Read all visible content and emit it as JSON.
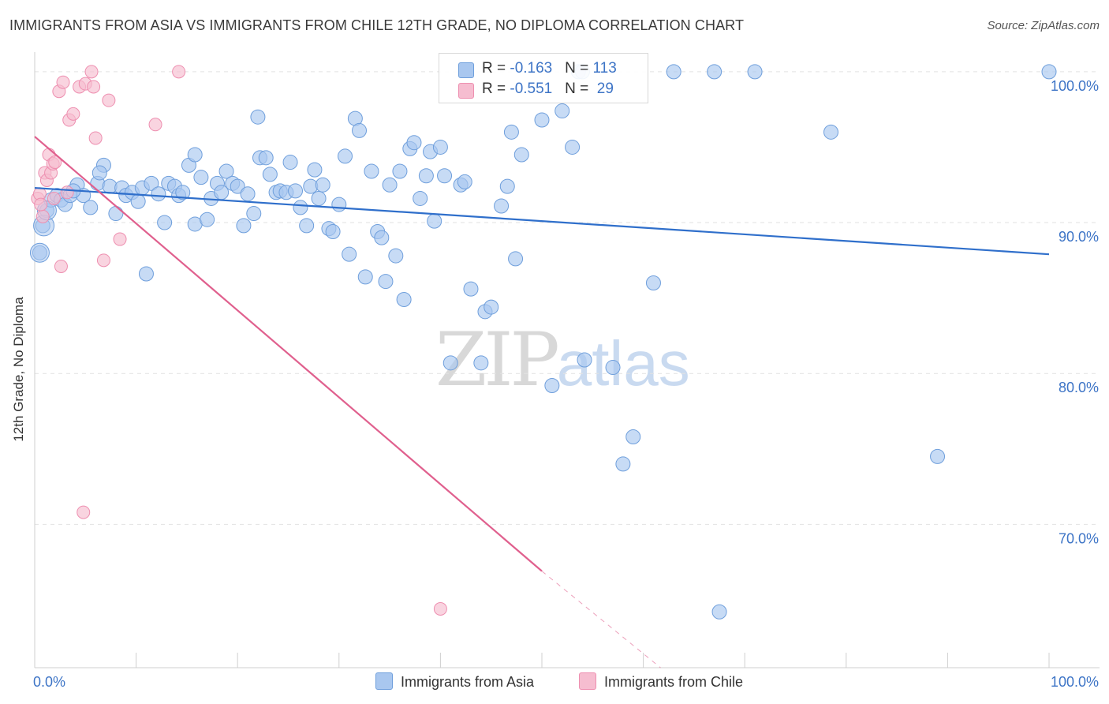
{
  "title": "IMMIGRANTS FROM ASIA VS IMMIGRANTS FROM CHILE 12TH GRADE, NO DIPLOMA CORRELATION CHART",
  "source": "Source: ZipAtlas.com",
  "watermark": {
    "zip": "ZIP",
    "atlas": "atlas"
  },
  "legend": {
    "asia": {
      "r_label": "R = ",
      "r_value": "-0.163",
      "n_label": "N = ",
      "n_value": "113"
    },
    "chile": {
      "r_label": "R = ",
      "r_value": "-0.551",
      "n_label": "N = ",
      "n_value": "29"
    }
  },
  "colors": {
    "asia_fill": "#a9c7ef",
    "asia_stroke": "#6f9fdc",
    "asia_line": "#2f6fcb",
    "chile_fill": "#f6bdd0",
    "chile_stroke": "#ee8fb0",
    "chile_line": "#e0608e",
    "grid": "#e2e2e2",
    "tick_label": "#3d74c6"
  },
  "chart_data": {
    "type": "scatter",
    "title": "IMMIGRANTS FROM ASIA VS IMMIGRANTS FROM CHILE 12TH GRADE, NO DIPLOMA CORRELATION CHART",
    "xlabel": "",
    "ylabel": "12th Grade, No Diploma",
    "xlim": [
      0,
      100
    ],
    "ylim": [
      60.5,
      101.3
    ],
    "x_tick_labels": [
      "0.0%",
      "100.0%"
    ],
    "y_ticks": [
      100,
      90,
      80,
      70
    ],
    "y_tick_labels": [
      "100.0%",
      "90.0%",
      "80.0%",
      "70.0%"
    ],
    "grid": true,
    "legend_position": "top-center",
    "series": [
      {
        "name": "Immigrants from Asia",
        "trend": {
          "x": [
            0,
            100
          ],
          "y": [
            92.3,
            87.9
          ]
        },
        "points": [
          [
            0.5,
            88.0
          ],
          [
            0.8,
            89.8
          ],
          [
            1.2,
            90.8
          ],
          [
            1.6,
            91.5
          ],
          [
            2.2,
            91.8
          ],
          [
            2.6,
            91.5
          ],
          [
            3.0,
            91.2
          ],
          [
            3.5,
            91.8
          ],
          [
            4.2,
            92.5
          ],
          [
            4.8,
            91.8
          ],
          [
            5.5,
            91.0
          ],
          [
            6.2,
            92.6
          ],
          [
            6.8,
            93.8
          ],
          [
            7.4,
            92.4
          ],
          [
            8.0,
            90.6
          ],
          [
            8.6,
            92.3
          ],
          [
            9.0,
            91.8
          ],
          [
            9.6,
            92.0
          ],
          [
            10.2,
            91.4
          ],
          [
            10.6,
            92.3
          ],
          [
            11.0,
            86.6
          ],
          [
            11.5,
            92.6
          ],
          [
            12.2,
            91.9
          ],
          [
            12.8,
            90.0
          ],
          [
            13.2,
            92.6
          ],
          [
            13.8,
            92.4
          ],
          [
            14.2,
            91.8
          ],
          [
            14.6,
            92.0
          ],
          [
            15.2,
            93.8
          ],
          [
            15.8,
            89.9
          ],
          [
            16.4,
            93.0
          ],
          [
            17.0,
            90.2
          ],
          [
            17.4,
            91.6
          ],
          [
            18.0,
            92.6
          ],
          [
            18.4,
            92.0
          ],
          [
            18.9,
            93.4
          ],
          [
            19.5,
            92.6
          ],
          [
            20.0,
            92.4
          ],
          [
            20.6,
            89.8
          ],
          [
            21.0,
            91.9
          ],
          [
            21.6,
            90.6
          ],
          [
            22.2,
            94.3
          ],
          [
            22.8,
            94.3
          ],
          [
            23.2,
            93.2
          ],
          [
            23.8,
            92.0
          ],
          [
            24.2,
            92.1
          ],
          [
            24.8,
            92.0
          ],
          [
            25.2,
            94.0
          ],
          [
            25.7,
            92.1
          ],
          [
            26.2,
            91.0
          ],
          [
            26.8,
            89.8
          ],
          [
            27.2,
            92.4
          ],
          [
            27.6,
            93.5
          ],
          [
            28.0,
            91.6
          ],
          [
            28.4,
            92.5
          ],
          [
            29.0,
            89.6
          ],
          [
            29.4,
            89.4
          ],
          [
            30.0,
            91.2
          ],
          [
            30.6,
            94.4
          ],
          [
            31.0,
            87.9
          ],
          [
            31.6,
            96.9
          ],
          [
            32.0,
            96.1
          ],
          [
            32.6,
            86.4
          ],
          [
            33.2,
            93.4
          ],
          [
            33.8,
            89.4
          ],
          [
            34.2,
            89.0
          ],
          [
            34.6,
            86.1
          ],
          [
            35.0,
            92.5
          ],
          [
            35.6,
            87.8
          ],
          [
            36.0,
            93.4
          ],
          [
            36.4,
            84.9
          ],
          [
            37.0,
            94.9
          ],
          [
            37.4,
            95.3
          ],
          [
            38.0,
            91.6
          ],
          [
            38.6,
            93.1
          ],
          [
            39.0,
            94.7
          ],
          [
            39.4,
            90.1
          ],
          [
            40.0,
            95.0
          ],
          [
            40.4,
            93.1
          ],
          [
            41.0,
            80.7
          ],
          [
            42.0,
            92.5
          ],
          [
            42.4,
            92.7
          ],
          [
            43.0,
            85.6
          ],
          [
            44.0,
            80.7
          ],
          [
            44.4,
            84.1
          ],
          [
            45.0,
            84.4
          ],
          [
            46.0,
            91.1
          ],
          [
            46.6,
            92.4
          ],
          [
            47.0,
            96.0
          ],
          [
            47.4,
            87.6
          ],
          [
            48.0,
            94.5
          ],
          [
            50.0,
            96.8
          ],
          [
            51.0,
            79.2
          ],
          [
            52.0,
            97.4
          ],
          [
            53.0,
            95.0
          ],
          [
            53.6,
            100.0
          ],
          [
            54.2,
            80.9
          ],
          [
            57.0,
            80.4
          ],
          [
            58.0,
            74.0
          ],
          [
            59.0,
            75.8
          ],
          [
            61.0,
            86.0
          ],
          [
            63.0,
            100.0
          ],
          [
            67.0,
            100.0
          ],
          [
            67.5,
            64.2
          ],
          [
            71.0,
            100.0
          ],
          [
            78.5,
            96.0
          ],
          [
            89.0,
            74.5
          ],
          [
            100.0,
            100.0
          ],
          [
            54.0,
            100.0
          ],
          [
            22.0,
            97.0
          ],
          [
            3.8,
            92.1
          ],
          [
            6.4,
            93.3
          ],
          [
            15.8,
            94.5
          ]
        ]
      },
      {
        "name": "Immigrants from Chile",
        "trend": {
          "x": [
            0,
            50.0
          ],
          "y": [
            95.7,
            66.9
          ]
        },
        "trend_extension": {
          "x": [
            50.0,
            61.7
          ],
          "y": [
            66.9,
            60.5
          ]
        },
        "points": [
          [
            0.3,
            91.6
          ],
          [
            0.5,
            91.9
          ],
          [
            0.8,
            90.4
          ],
          [
            1.0,
            93.3
          ],
          [
            1.2,
            92.8
          ],
          [
            1.4,
            94.5
          ],
          [
            1.6,
            93.3
          ],
          [
            1.8,
            93.9
          ],
          [
            2.0,
            94.0
          ],
          [
            2.4,
            98.7
          ],
          [
            2.6,
            87.1
          ],
          [
            2.8,
            99.3
          ],
          [
            3.2,
            92.0
          ],
          [
            3.4,
            96.8
          ],
          [
            3.8,
            97.2
          ],
          [
            4.4,
            99.0
          ],
          [
            5.0,
            99.2
          ],
          [
            5.6,
            100.0
          ],
          [
            5.8,
            99.0
          ],
          [
            6.0,
            95.6
          ],
          [
            6.8,
            87.5
          ],
          [
            7.3,
            98.1
          ],
          [
            8.4,
            88.9
          ],
          [
            11.9,
            96.5
          ],
          [
            14.2,
            100.0
          ],
          [
            4.8,
            70.8
          ],
          [
            40.0,
            64.4
          ],
          [
            1.9,
            91.6
          ],
          [
            0.6,
            91.2
          ]
        ]
      }
    ]
  },
  "bottom_legend": {
    "asia": "Immigrants from Asia",
    "chile": "Immigrants from Chile"
  }
}
